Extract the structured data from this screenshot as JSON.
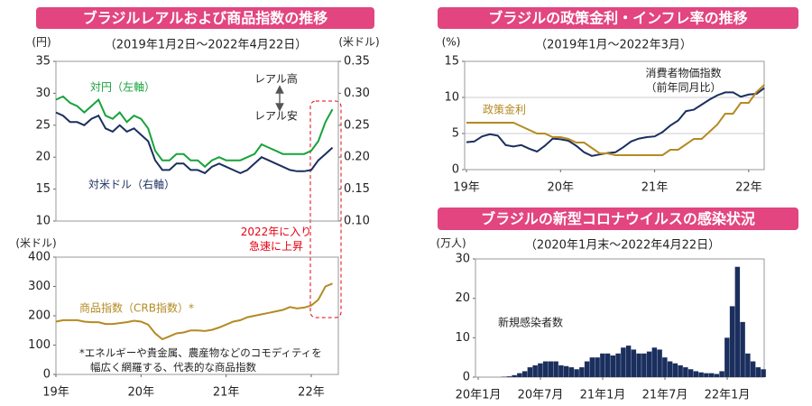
{
  "chart_data": [
    {
      "type": "line",
      "title": "ブラジルレアルおよび商品指数の推移",
      "subtitle": "（2019年1月2日～2022年4月22日）",
      "ylabel": "(円)",
      "y2label": "(米ドル)",
      "ylim": [
        10,
        35
      ],
      "yticks": [
        10,
        15,
        20,
        25,
        30,
        35
      ],
      "y2lim": [
        0.1,
        0.35
      ],
      "y2ticks": [
        {
          "value": 0.1,
          "label": "0.10"
        },
        0.15,
        {
          "value": 0.2,
          "label": "0.20"
        },
        0.25,
        {
          "value": 0.3,
          "label": "0.30"
        },
        0.35
      ],
      "series": [
        {
          "name": "対円（左軸）",
          "color": "#17a33b",
          "values": [
            29,
            29.5,
            28.5,
            28,
            27,
            28,
            29,
            26.5,
            26,
            27,
            25.5,
            26.5,
            26,
            24.5,
            21,
            19.5,
            19.5,
            20.5,
            20.5,
            19.5,
            19.5,
            18.5,
            19.5,
            20,
            19.5,
            19.5,
            19.5,
            20,
            20.5,
            22,
            21.5,
            21,
            20.5,
            20.5,
            20.5,
            20.5,
            21,
            22.5,
            25.5,
            27.5
          ]
        },
        {
          "name": "対米ドル（右軸）",
          "color": "#1b2f5e",
          "axis": "y2",
          "values": [
            0.27,
            0.265,
            0.255,
            0.255,
            0.25,
            0.26,
            0.265,
            0.245,
            0.24,
            0.25,
            0.24,
            0.245,
            0.235,
            0.225,
            0.195,
            0.18,
            0.18,
            0.19,
            0.19,
            0.18,
            0.18,
            0.175,
            0.185,
            0.19,
            0.185,
            0.18,
            0.175,
            0.18,
            0.19,
            0.2,
            0.195,
            0.19,
            0.185,
            0.18,
            0.178,
            0.178,
            0.18,
            0.195,
            0.205,
            0.215
          ]
        }
      ],
      "annotations": [
        "レアル高",
        "レアル安",
        "2022年に入り\n急速に上昇"
      ]
    },
    {
      "type": "line",
      "ylabel": "(米ドル)",
      "categories": [
        "19年",
        null,
        null,
        null,
        null,
        null,
        null,
        null,
        null,
        null,
        null,
        null,
        "20年",
        null,
        null,
        null,
        null,
        null,
        null,
        null,
        null,
        null,
        null,
        null,
        "21年",
        null,
        null,
        null,
        null,
        null,
        null,
        null,
        null,
        null,
        null,
        null,
        "22年",
        null,
        null,
        null
      ],
      "ylim": [
        0,
        400
      ],
      "yticks": [
        0,
        100,
        200,
        300,
        400
      ],
      "series": [
        {
          "name": "商品指数（CRB指数）*",
          "color": "#b48a22",
          "values": [
            180,
            185,
            185,
            185,
            180,
            178,
            178,
            172,
            172,
            175,
            178,
            183,
            180,
            170,
            140,
            120,
            130,
            140,
            143,
            150,
            150,
            148,
            152,
            160,
            170,
            180,
            185,
            195,
            200,
            205,
            210,
            215,
            220,
            230,
            225,
            228,
            235,
            255,
            300,
            310
          ]
        }
      ],
      "footnote": "*エネルギーや貴金属、農産物などのコモディティを\n幅広く網羅する、代表的な商品指数"
    },
    {
      "type": "line",
      "title": "ブラジルの政策金利・インフレ率の推移",
      "subtitle": "（2019年1月～2022年3月）",
      "ylabel": "(%)",
      "categories": [
        "19年",
        null,
        null,
        null,
        null,
        null,
        null,
        null,
        null,
        null,
        null,
        null,
        "20年",
        null,
        null,
        null,
        null,
        null,
        null,
        null,
        null,
        null,
        null,
        null,
        "21年",
        null,
        null,
        null,
        null,
        null,
        null,
        null,
        null,
        null,
        null,
        null,
        "22年",
        null,
        null
      ],
      "ylim": [
        0,
        15
      ],
      "yticks": [
        0,
        5,
        10,
        15
      ],
      "grid": true,
      "series": [
        {
          "name": "消費者物価指数\n（前年同月比）",
          "color": "#1b2f5e",
          "values": [
            3.8,
            3.9,
            4.6,
            4.9,
            4.7,
            3.4,
            3.2,
            3.4,
            2.9,
            2.5,
            3.3,
            4.3,
            4.2,
            4.0,
            3.3,
            2.4,
            1.9,
            2.1,
            2.3,
            2.4,
            3.1,
            3.9,
            4.3,
            4.5,
            4.6,
            5.2,
            6.1,
            6.8,
            8.1,
            8.3,
            9.0,
            9.7,
            10.3,
            10.7,
            10.7,
            10.1,
            10.4,
            10.5,
            11.3
          ]
        },
        {
          "name": "政策金利",
          "color": "#b48a22",
          "values": [
            6.5,
            6.5,
            6.5,
            6.5,
            6.5,
            6.5,
            6.5,
            6,
            5.5,
            5,
            5,
            4.5,
            4.5,
            4.25,
            3.75,
            3.75,
            3,
            2.25,
            2.25,
            2,
            2,
            2,
            2,
            2,
            2,
            2,
            2.75,
            2.75,
            3.5,
            4.25,
            4.25,
            5.25,
            6.25,
            7.75,
            7.75,
            9.25,
            9.25,
            10.75,
            11.75
          ]
        }
      ]
    },
    {
      "type": "bar",
      "title": "ブラジルの新型コロナウイルスの感染状況",
      "subtitle": "（2020年1月末～2022年4月22日）",
      "ylabel": "(万人)",
      "categories": [
        "20年1月",
        null,
        null,
        null,
        null,
        null,
        null,
        null,
        null,
        null,
        null,
        null,
        "20年7月",
        null,
        null,
        null,
        null,
        null,
        null,
        null,
        null,
        null,
        null,
        null,
        "21年1月",
        null,
        null,
        null,
        null,
        null,
        null,
        null,
        null,
        null,
        null,
        null,
        "21年7月",
        null,
        null,
        null,
        null,
        null,
        null,
        null,
        null,
        null,
        null,
        null,
        "22年1月",
        null,
        null,
        null,
        null,
        null,
        null,
        null
      ],
      "ylim": [
        0,
        30
      ],
      "yticks": [
        0,
        10,
        20,
        30
      ],
      "series": [
        {
          "name": "新規感染者数",
          "color": "#1b2f5e",
          "values": [
            0,
            0,
            0,
            0,
            0,
            0.1,
            0.2,
            0.5,
            1,
            1.5,
            2.5,
            3,
            3.5,
            4,
            4,
            4,
            3,
            2.8,
            2.5,
            2,
            2.5,
            4,
            5,
            5,
            6,
            6,
            5.5,
            6,
            7.5,
            8,
            7,
            6,
            6,
            6.5,
            7.5,
            7,
            5,
            4,
            3.5,
            3,
            2.5,
            2,
            1.5,
            1.2,
            1,
            1,
            0.8,
            1.5,
            10,
            18,
            28,
            14,
            6,
            4,
            2.5,
            2
          ]
        }
      ]
    }
  ]
}
